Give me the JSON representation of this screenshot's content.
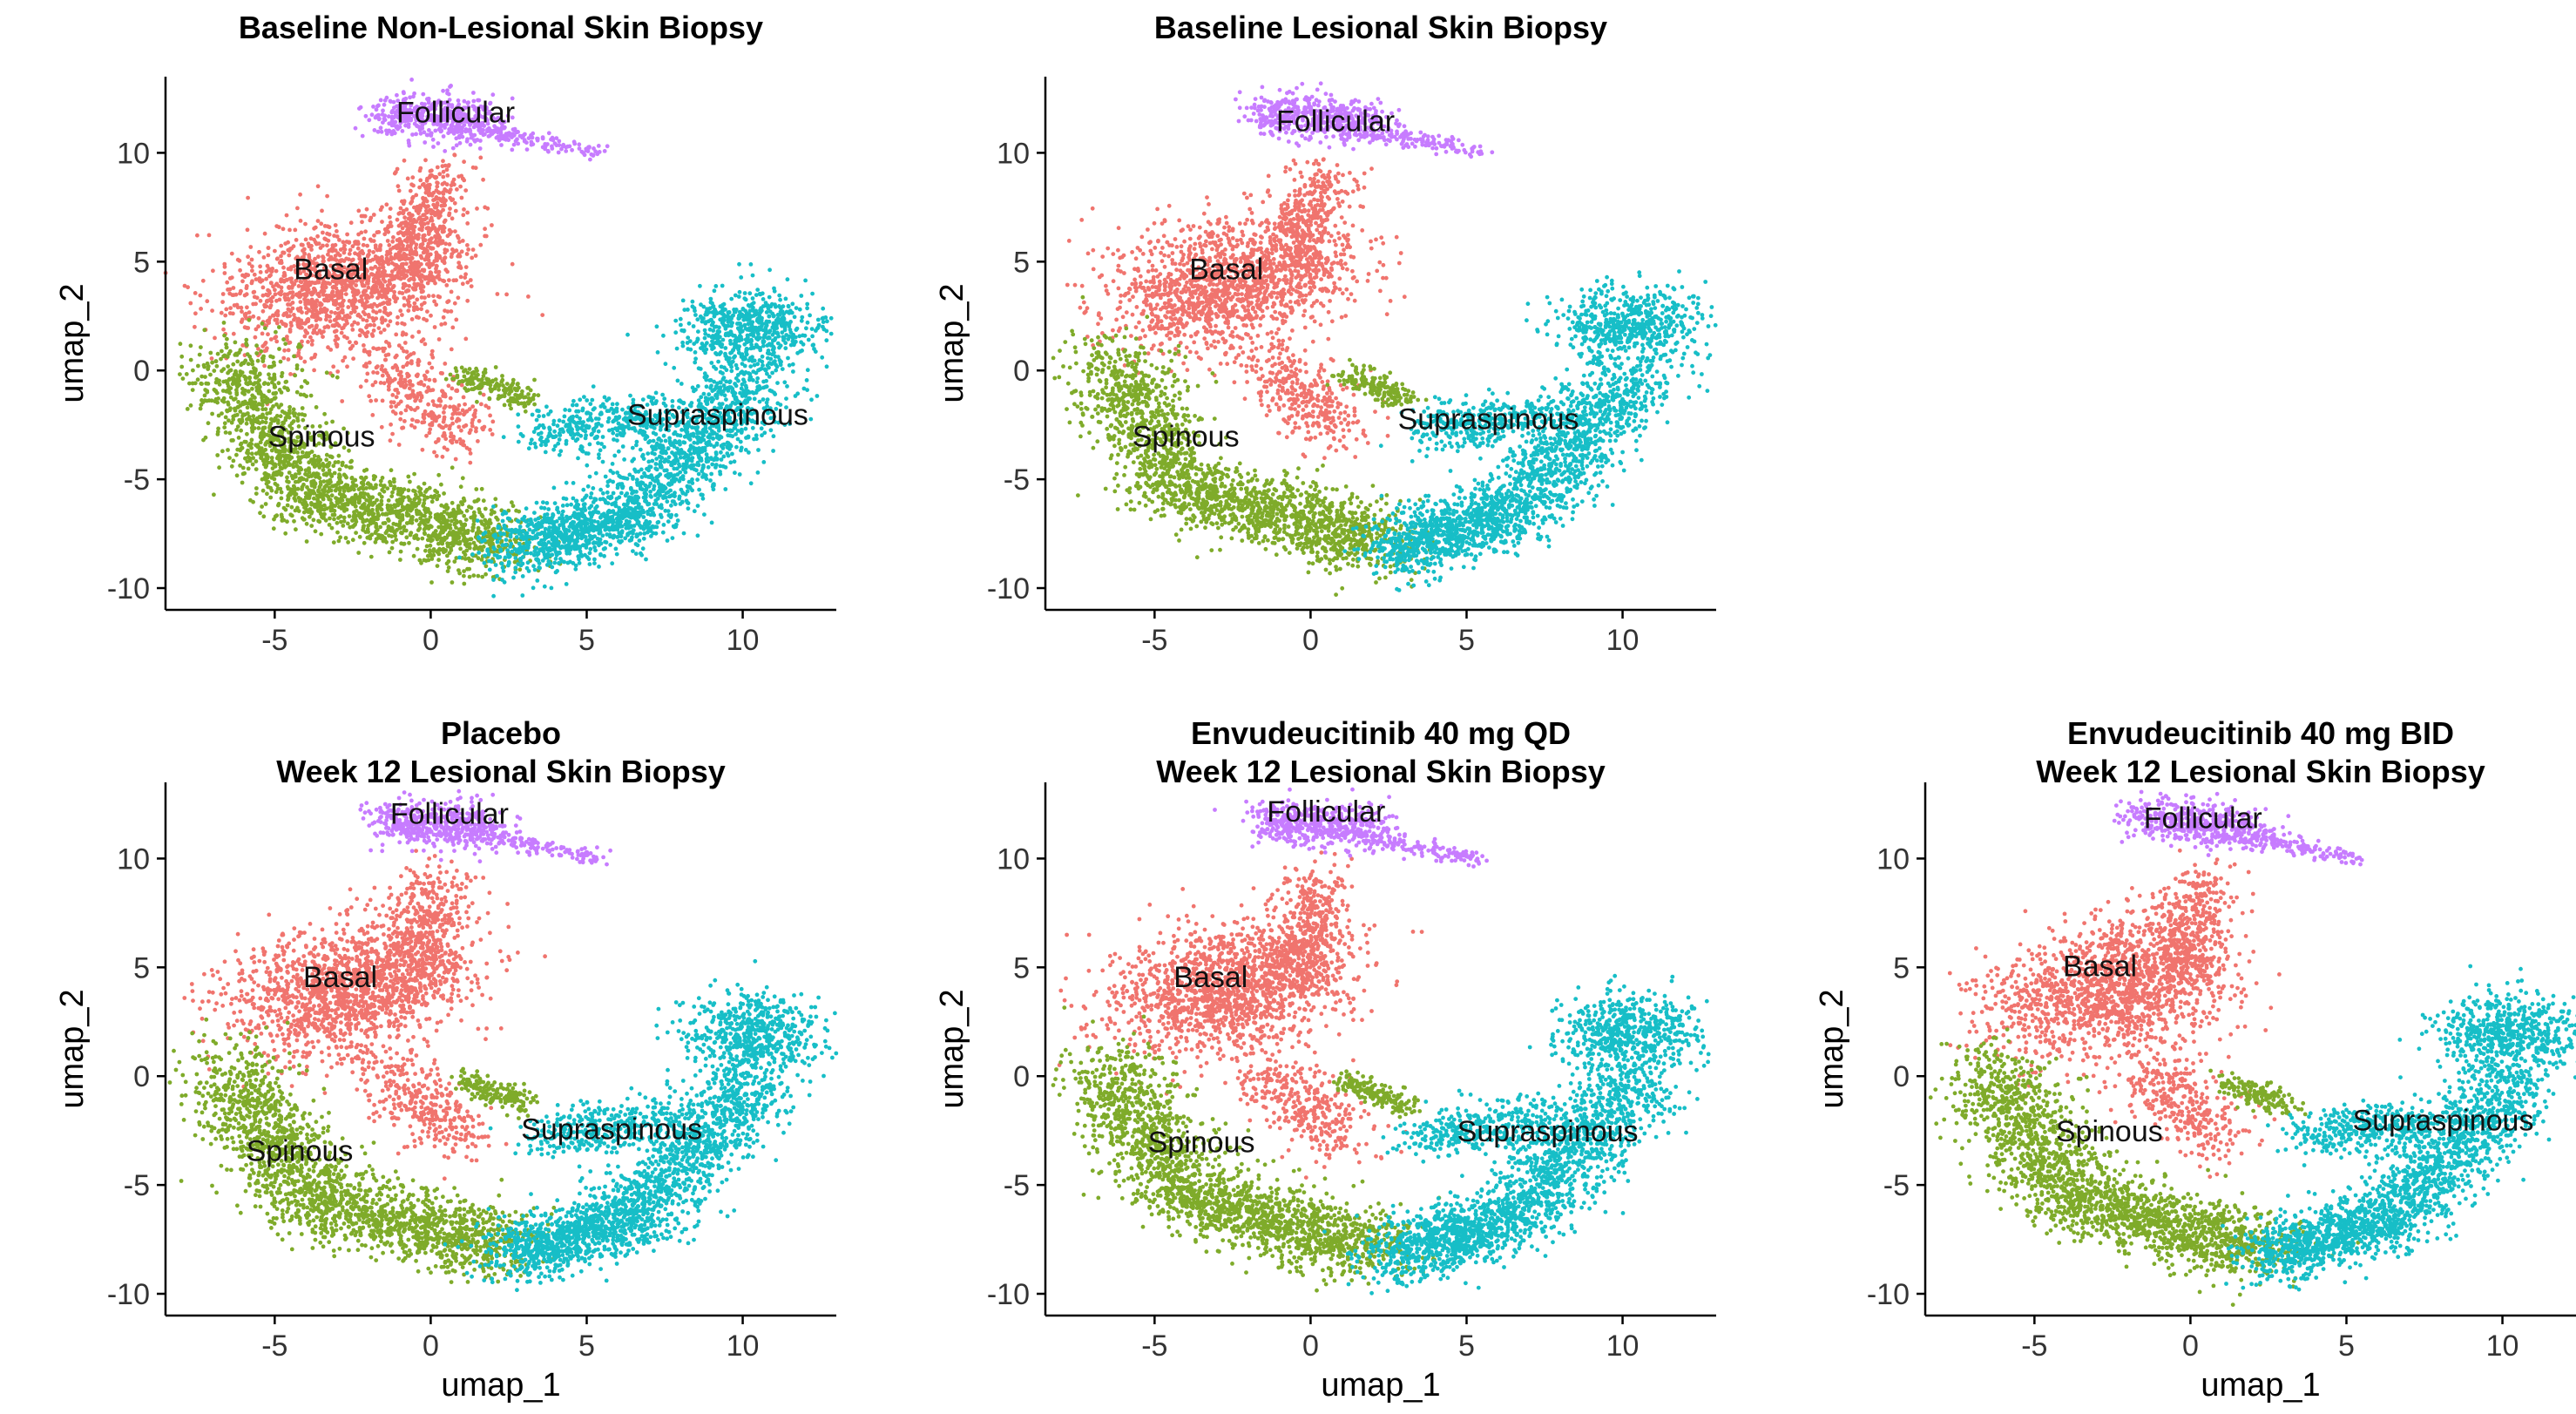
{
  "colors": {
    "Basal": "#F0746E",
    "Spinous": "#7FAB2A",
    "Follicular": "#C77CFF",
    "Suprapinous": "#17BEC7"
  },
  "chart_data": [
    {
      "type": "scatter",
      "title": [
        "Baseline Non-Lesional Skin Biopsy"
      ],
      "xlabel": "",
      "ylabel": "umap_2",
      "xlim": [
        -8.5,
        13
      ],
      "ylim": [
        -11,
        13.5
      ],
      "xticks": [
        "-5",
        "0",
        "5",
        "10"
      ],
      "yticks": [
        "-10",
        "-5",
        "0",
        "5",
        "10"
      ],
      "clusters": [
        {
          "name": "Follicular",
          "label_x": 0.8,
          "label_y": 11.4
        },
        {
          "name": "Basal",
          "label_x": -3.2,
          "label_y": 4.2
        },
        {
          "name": "Spinous",
          "label_x": -3.5,
          "label_y": -3.5
        },
        {
          "name": "Supraspinous",
          "label_x": 9.2,
          "label_y": -2.5
        }
      ]
    },
    {
      "type": "scatter",
      "title": [
        "Baseline Lesional Skin Biopsy"
      ],
      "xlabel": "",
      "ylabel": "umap_2",
      "xlim": [
        -8.5,
        13
      ],
      "ylim": [
        -11,
        13.5
      ],
      "xticks": [
        "-5",
        "0",
        "5",
        "10"
      ],
      "yticks": [
        "-10",
        "-5",
        "0",
        "5",
        "10"
      ],
      "clusters": [
        {
          "name": "Follicular",
          "label_x": 0.8,
          "label_y": 11.0
        },
        {
          "name": "Basal",
          "label_x": -2.7,
          "label_y": 4.2
        },
        {
          "name": "Spinous",
          "label_x": -4.0,
          "label_y": -3.5
        },
        {
          "name": "Supraspinous",
          "label_x": 5.7,
          "label_y": -2.7
        }
      ]
    },
    {
      "type": "scatter",
      "title": [
        "Placebo",
        "Week 12 Lesional Skin Biopsy"
      ],
      "xlabel": "umap_1",
      "ylabel": "umap_2",
      "xlim": [
        -8.5,
        13
      ],
      "ylim": [
        -11,
        13.5
      ],
      "xticks": [
        "-5",
        "0",
        "5",
        "10"
      ],
      "yticks": [
        "-10",
        "-5",
        "0",
        "5",
        "10"
      ],
      "clusters": [
        {
          "name": "Follicular",
          "label_x": 0.6,
          "label_y": 11.6
        },
        {
          "name": "Basal",
          "label_x": -2.9,
          "label_y": 4.1
        },
        {
          "name": "Spinous",
          "label_x": -4.2,
          "label_y": -3.9
        },
        {
          "name": "Supraspinous",
          "label_x": 5.8,
          "label_y": -2.9
        }
      ]
    },
    {
      "type": "scatter",
      "title": [
        "Envudeucitinib 40 mg QD",
        "Week 12 Lesional Skin Biopsy"
      ],
      "xlabel": "umap_1",
      "ylabel": "umap_2",
      "xlim": [
        -8.5,
        13
      ],
      "ylim": [
        -11,
        13.5
      ],
      "xticks": [
        "-5",
        "0",
        "5",
        "10"
      ],
      "yticks": [
        "-10",
        "-5",
        "0",
        "5",
        "10"
      ],
      "clusters": [
        {
          "name": "Follicular",
          "label_x": 0.5,
          "label_y": 11.7
        },
        {
          "name": "Basal",
          "label_x": -3.2,
          "label_y": 4.1
        },
        {
          "name": "Spinous",
          "label_x": -3.5,
          "label_y": -3.5
        },
        {
          "name": "Supraspinous",
          "label_x": 7.6,
          "label_y": -3.0
        }
      ]
    },
    {
      "type": "scatter",
      "title": [
        "Envudeucitinib 40 mg BID",
        "Week 12 Lesional Skin Biopsy"
      ],
      "xlabel": "umap_1",
      "ylabel": "umap_2",
      "xlim": [
        -8.5,
        13
      ],
      "ylim": [
        -11,
        13.5
      ],
      "xticks": [
        "-5",
        "0",
        "5",
        "10"
      ],
      "yticks": [
        "-10",
        "-5",
        "0",
        "5",
        "10"
      ],
      "clusters": [
        {
          "name": "Follicular",
          "label_x": 0.4,
          "label_y": 11.4
        },
        {
          "name": "Basal",
          "label_x": -2.9,
          "label_y": 4.6
        },
        {
          "name": "Spinous",
          "label_x": -2.6,
          "label_y": -3.0
        },
        {
          "name": "Supraspinous",
          "label_x": 8.1,
          "label_y": -2.5
        }
      ]
    }
  ]
}
